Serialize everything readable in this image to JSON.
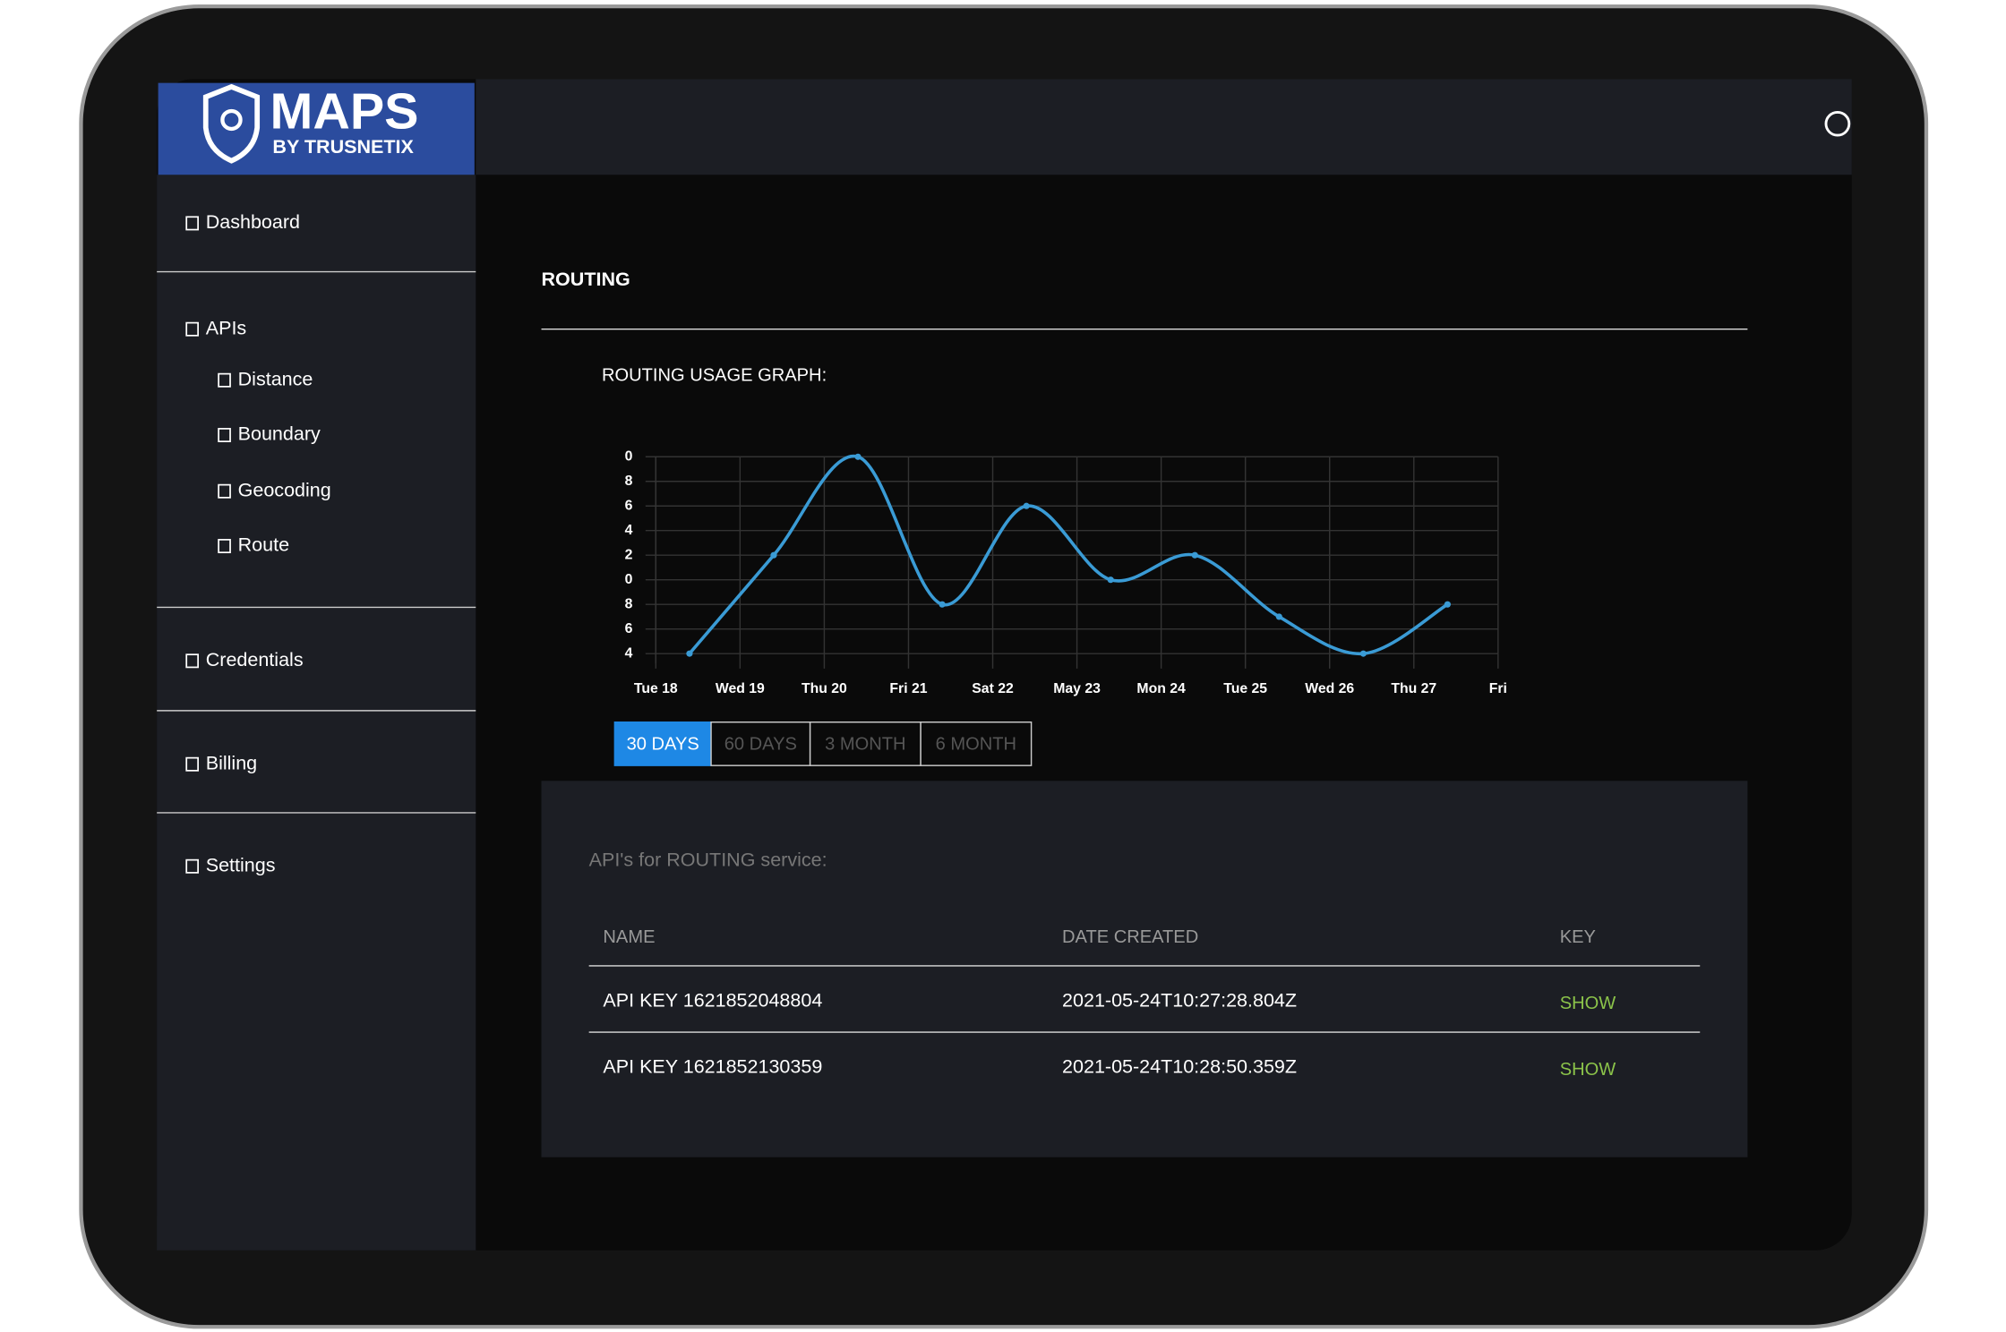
{
  "logo": {
    "title": "MAPS",
    "subtitle": "BY TRUSNETIX"
  },
  "nav": [
    "Dashboard",
    "APIs",
    "Distance",
    "Boundary",
    "Geocoding",
    "Route",
    "Credentials",
    "Billing",
    "Settings"
  ],
  "section_title": "ROUTING",
  "chart_data": {
    "type": "line",
    "title": "ROUTING USAGE GRAPH:",
    "categories": [
      "Tue 18",
      "Wed 19",
      "Thu 20",
      "Fri 21",
      "Sat 22",
      "May 23",
      "Mon 24",
      "Tue 25",
      "Wed 26",
      "Thu 27",
      "Fri"
    ],
    "values": [
      4,
      12,
      20,
      8,
      16,
      10,
      12,
      7,
      4,
      8,
      null
    ],
    "color": "#3a9bd5",
    "ylim": [
      3.2,
      20
    ],
    "yticks": [
      {
        "value": 20,
        "label": "0"
      },
      {
        "value": 18,
        "label": "8"
      },
      {
        "value": 16,
        "label": "6"
      },
      {
        "value": 14,
        "label": "4"
      },
      {
        "value": 12,
        "label": "2"
      },
      {
        "value": 10,
        "label": "0"
      },
      8,
      6,
      4
    ],
    "grid": true
  },
  "range_buttons": [
    "30 DAYS",
    "60 DAYS",
    "3 MONTH",
    "6 MONTH"
  ],
  "table": {
    "title": "API's for ROUTING service:",
    "columns": [
      "NAME",
      "DATE CREATED",
      "KEY"
    ],
    "rows": [
      [
        "API KEY 1621852048804",
        "2021-05-24T10:27:28.804Z",
        "SHOW"
      ],
      [
        "API KEY 1621852130359",
        "2021-05-24T10:28:50.359Z",
        "SHOW"
      ]
    ]
  }
}
